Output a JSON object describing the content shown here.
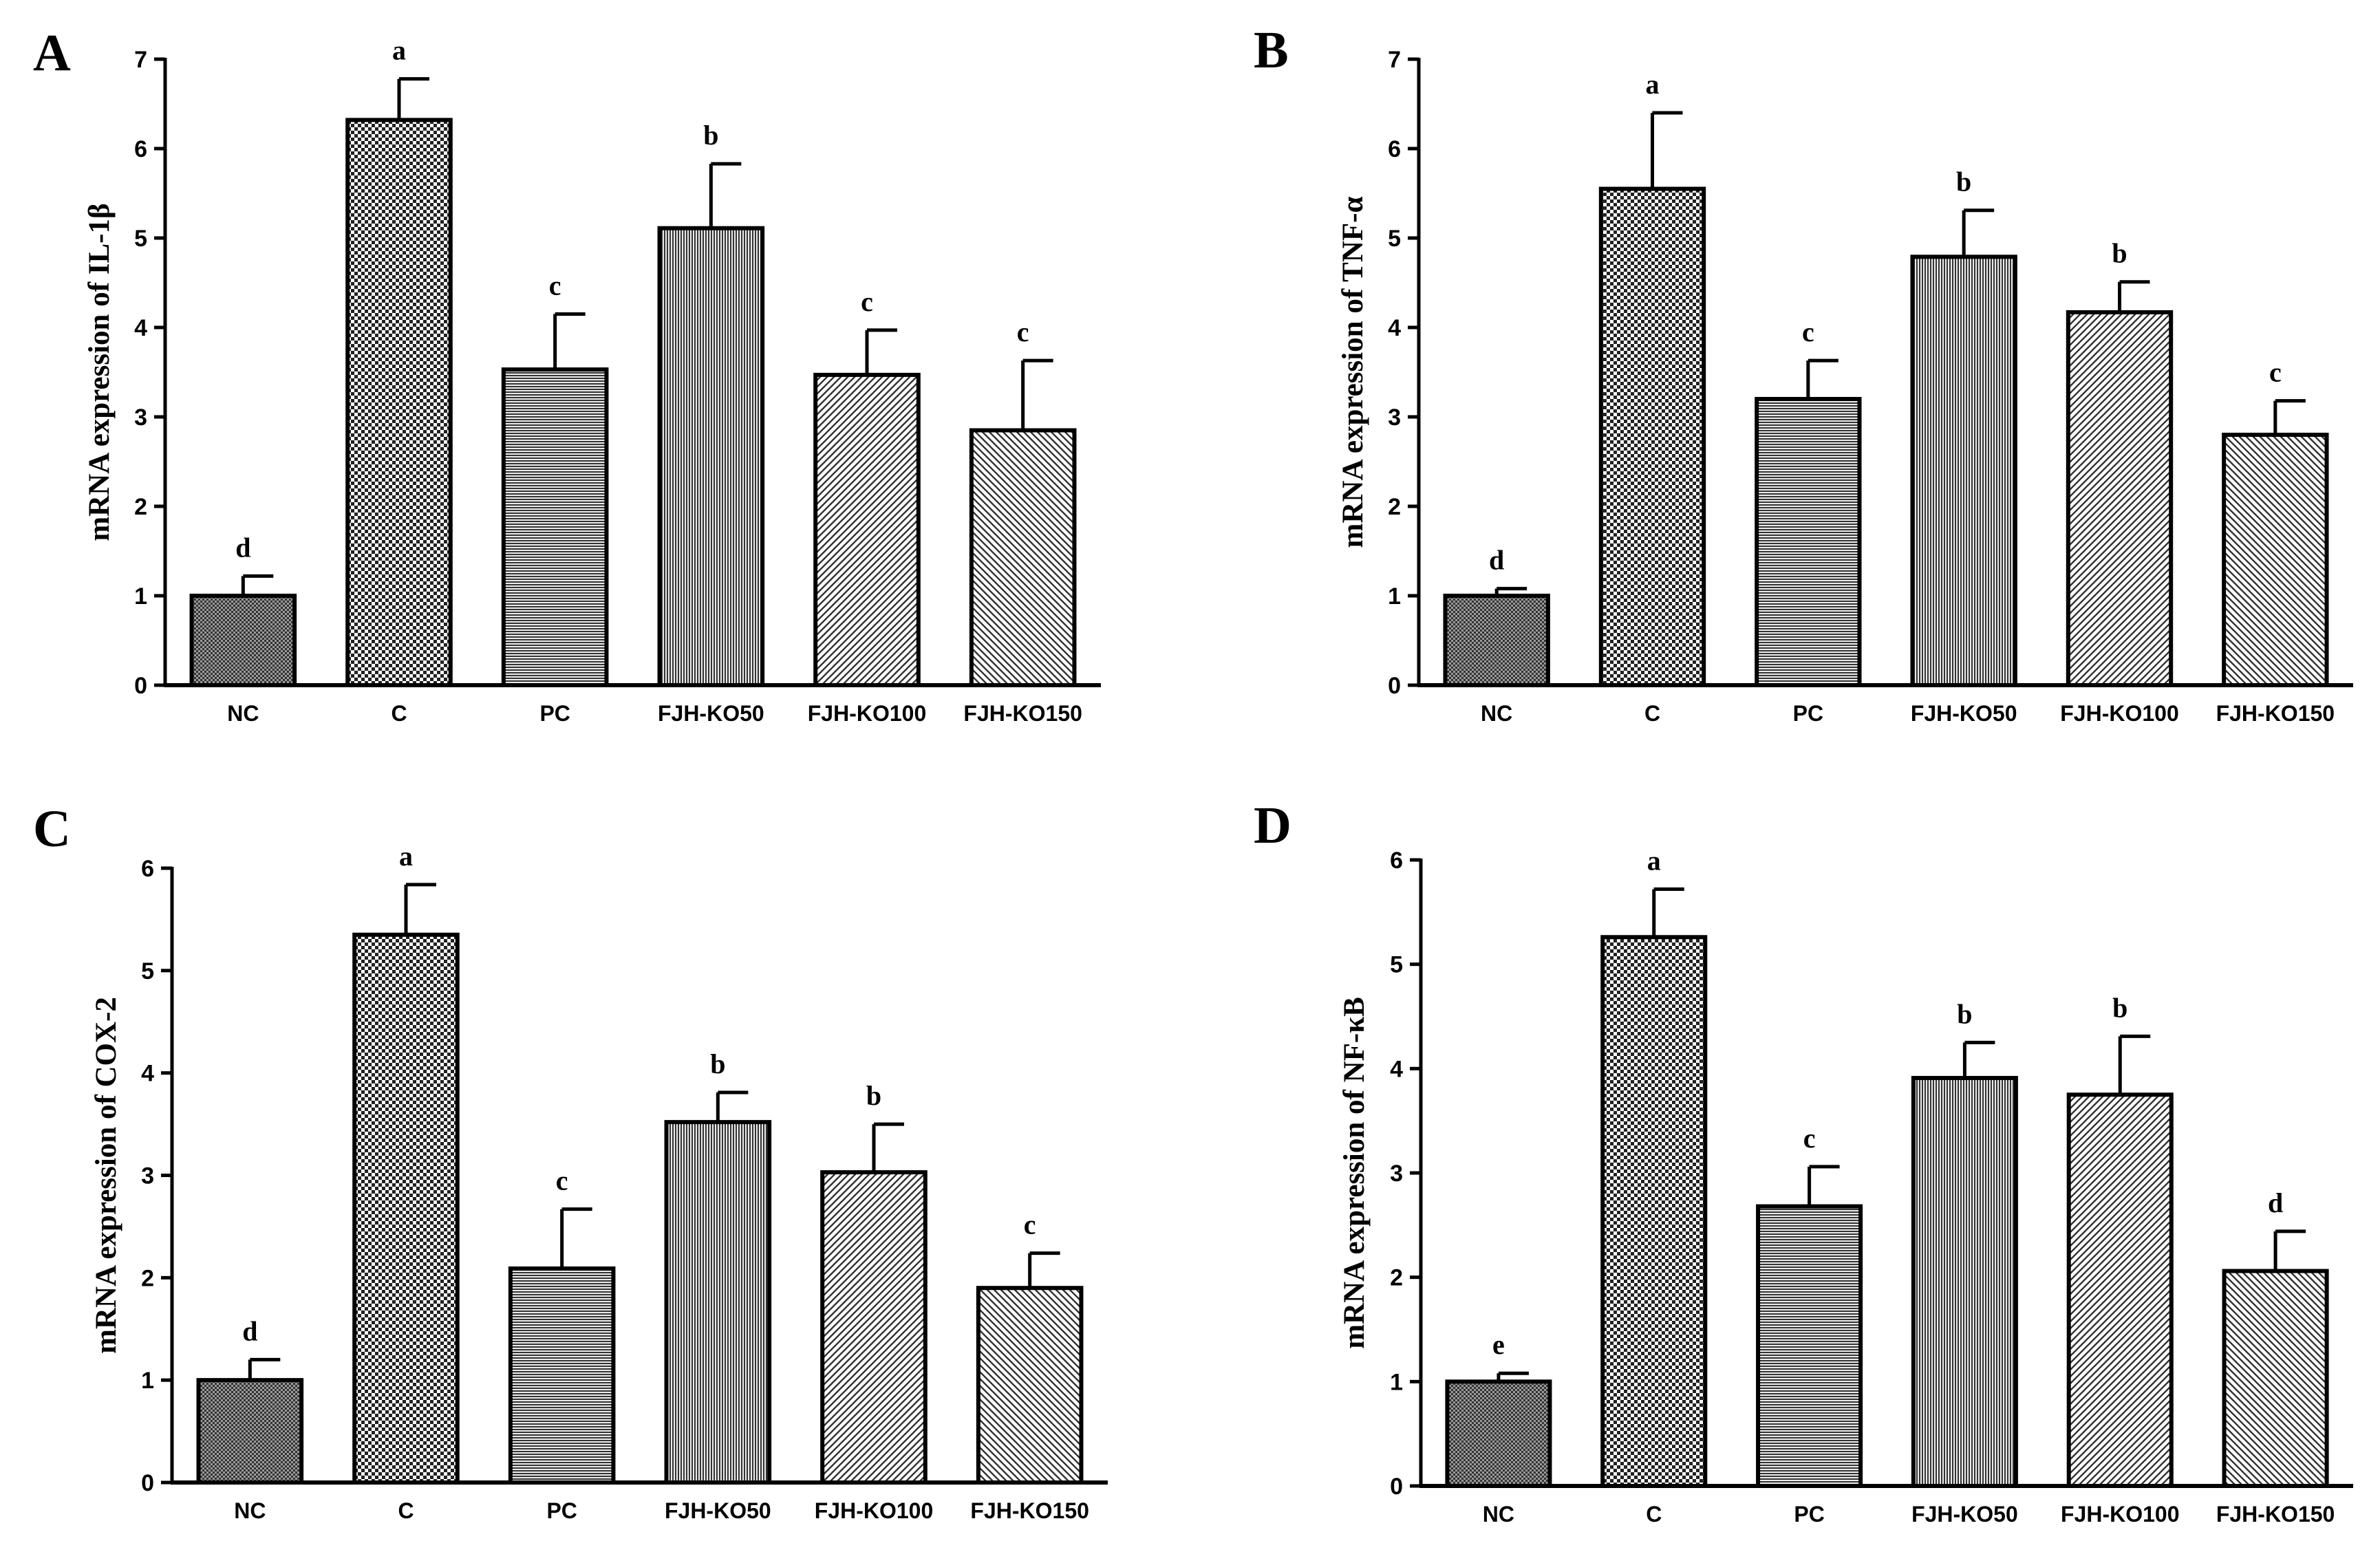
{
  "chart_data": [
    {
      "panel": "A",
      "type": "bar",
      "ylabel": "mRNA expression of  IL-1β",
      "ylim": [
        0,
        7
      ],
      "yticks": [
        0,
        1,
        2,
        3,
        4,
        5,
        6,
        7
      ],
      "categories": [
        "NC",
        "C",
        "PC",
        "FJH-KO50",
        "FJH-KO100",
        "FJH-KO150"
      ],
      "values": [
        1.0,
        6.32,
        3.53,
        5.11,
        3.47,
        2.85
      ],
      "errors": [
        0.22,
        0.46,
        0.62,
        0.72,
        0.5,
        0.78
      ],
      "significance": [
        "d",
        "a",
        "c",
        "b",
        "c",
        "c"
      ]
    },
    {
      "panel": "B",
      "type": "bar",
      "ylabel": "mRNA expression of  TNF-α",
      "ylim": [
        0,
        7
      ],
      "yticks": [
        0,
        1,
        2,
        3,
        4,
        5,
        6,
        7
      ],
      "categories": [
        "NC",
        "C",
        "PC",
        "FJH-KO50",
        "FJH-KO100",
        "FJH-KO150"
      ],
      "values": [
        1.0,
        5.55,
        3.2,
        4.79,
        4.17,
        2.8
      ],
      "errors": [
        0.08,
        0.85,
        0.43,
        0.52,
        0.34,
        0.38
      ],
      "significance": [
        "d",
        "a",
        "c",
        "b",
        "b",
        "c"
      ]
    },
    {
      "panel": "C",
      "type": "bar",
      "ylabel": "mRNA expression of  COX-2",
      "ylim": [
        0,
        6
      ],
      "yticks": [
        0,
        1,
        2,
        3,
        4,
        5,
        6
      ],
      "categories": [
        "NC",
        "C",
        "PC",
        "FJH-KO50",
        "FJH-KO100",
        "FJH-KO150"
      ],
      "values": [
        1.0,
        5.35,
        2.09,
        3.52,
        3.03,
        1.9
      ],
      "errors": [
        0.2,
        0.49,
        0.58,
        0.29,
        0.47,
        0.34
      ],
      "significance": [
        "d",
        "a",
        "c",
        "b",
        "b",
        "c"
      ]
    },
    {
      "panel": "D",
      "type": "bar",
      "ylabel": "mRNA expression of  NF-κB",
      "ylim": [
        0,
        6
      ],
      "yticks": [
        0,
        1,
        2,
        3,
        4,
        5,
        6
      ],
      "categories": [
        "NC",
        "C",
        "PC",
        "FJH-KO50",
        "FJH-KO100",
        "FJH-KO150"
      ],
      "values": [
        1.0,
        5.26,
        2.68,
        3.91,
        3.75,
        2.06
      ],
      "errors": [
        0.08,
        0.46,
        0.38,
        0.34,
        0.56,
        0.38
      ],
      "significance": [
        "e",
        "a",
        "c",
        "b",
        "b",
        "d"
      ]
    }
  ]
}
